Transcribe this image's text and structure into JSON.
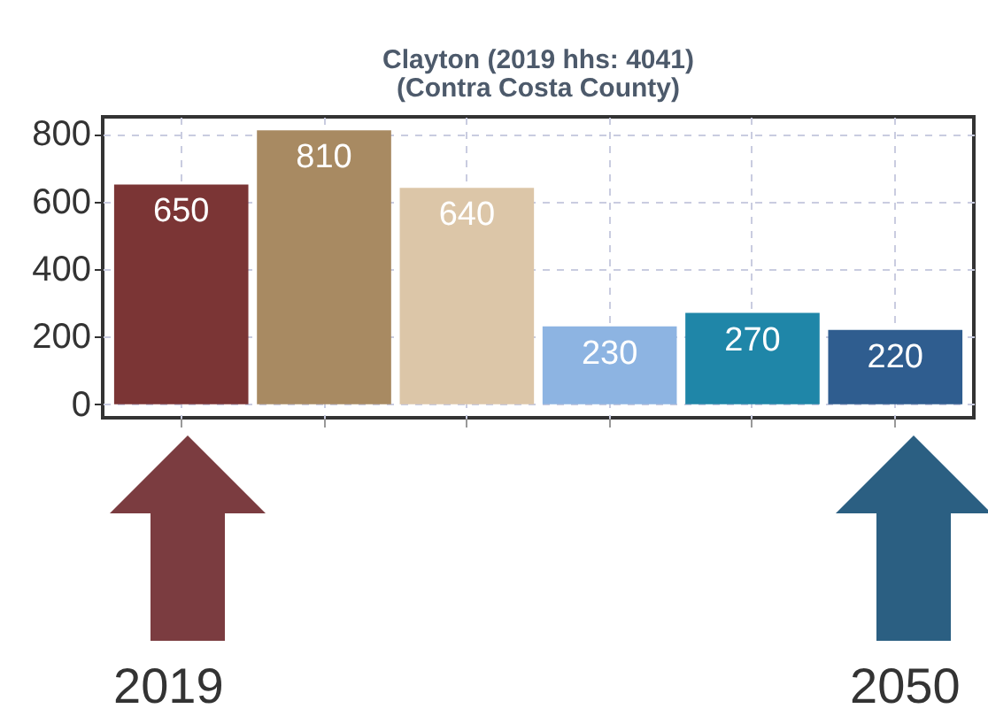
{
  "chart_data": {
    "type": "bar",
    "title": "Clayton (2019 hhs: 4041)",
    "subtitle": "(Contra Costa County)",
    "categories": [
      null,
      null,
      null,
      null,
      null,
      null
    ],
    "values": [
      650,
      810,
      640,
      230,
      270,
      220
    ],
    "colors": [
      "#7b3535",
      "#a88a62",
      "#dcc6a8",
      "#8db4e2",
      "#1f86a8",
      "#2f5d8f"
    ],
    "ylim": [
      -40,
      850
    ],
    "yticks": [
      0,
      200,
      400,
      600,
      800
    ],
    "grid": true,
    "data_labels": true,
    "annotations": [
      "2019",
      "2050"
    ]
  }
}
